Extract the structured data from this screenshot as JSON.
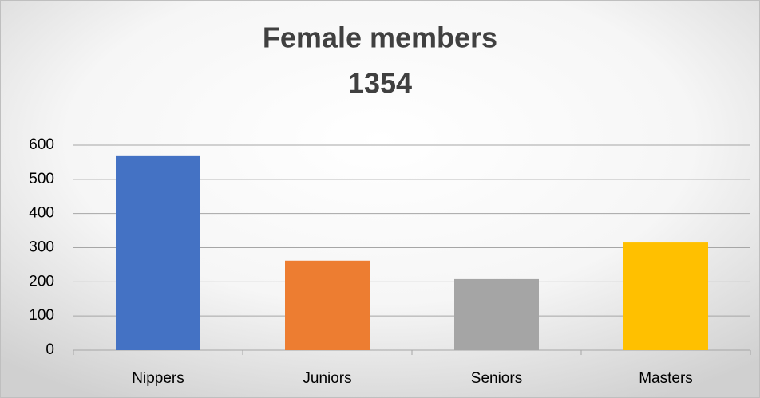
{
  "chart_data": {
    "type": "bar",
    "title": "Female members",
    "subtitle": "1354",
    "categories": [
      "Nippers",
      "Juniors",
      "Seniors",
      "Masters"
    ],
    "values": [
      570,
      262,
      208,
      315
    ],
    "colors": [
      "#4472c4",
      "#ed7d31",
      "#a5a5a5",
      "#ffc000"
    ],
    "ylim": [
      0,
      600
    ],
    "yticks": [
      0,
      100,
      200,
      300,
      400,
      500,
      600
    ],
    "grid": true
  }
}
